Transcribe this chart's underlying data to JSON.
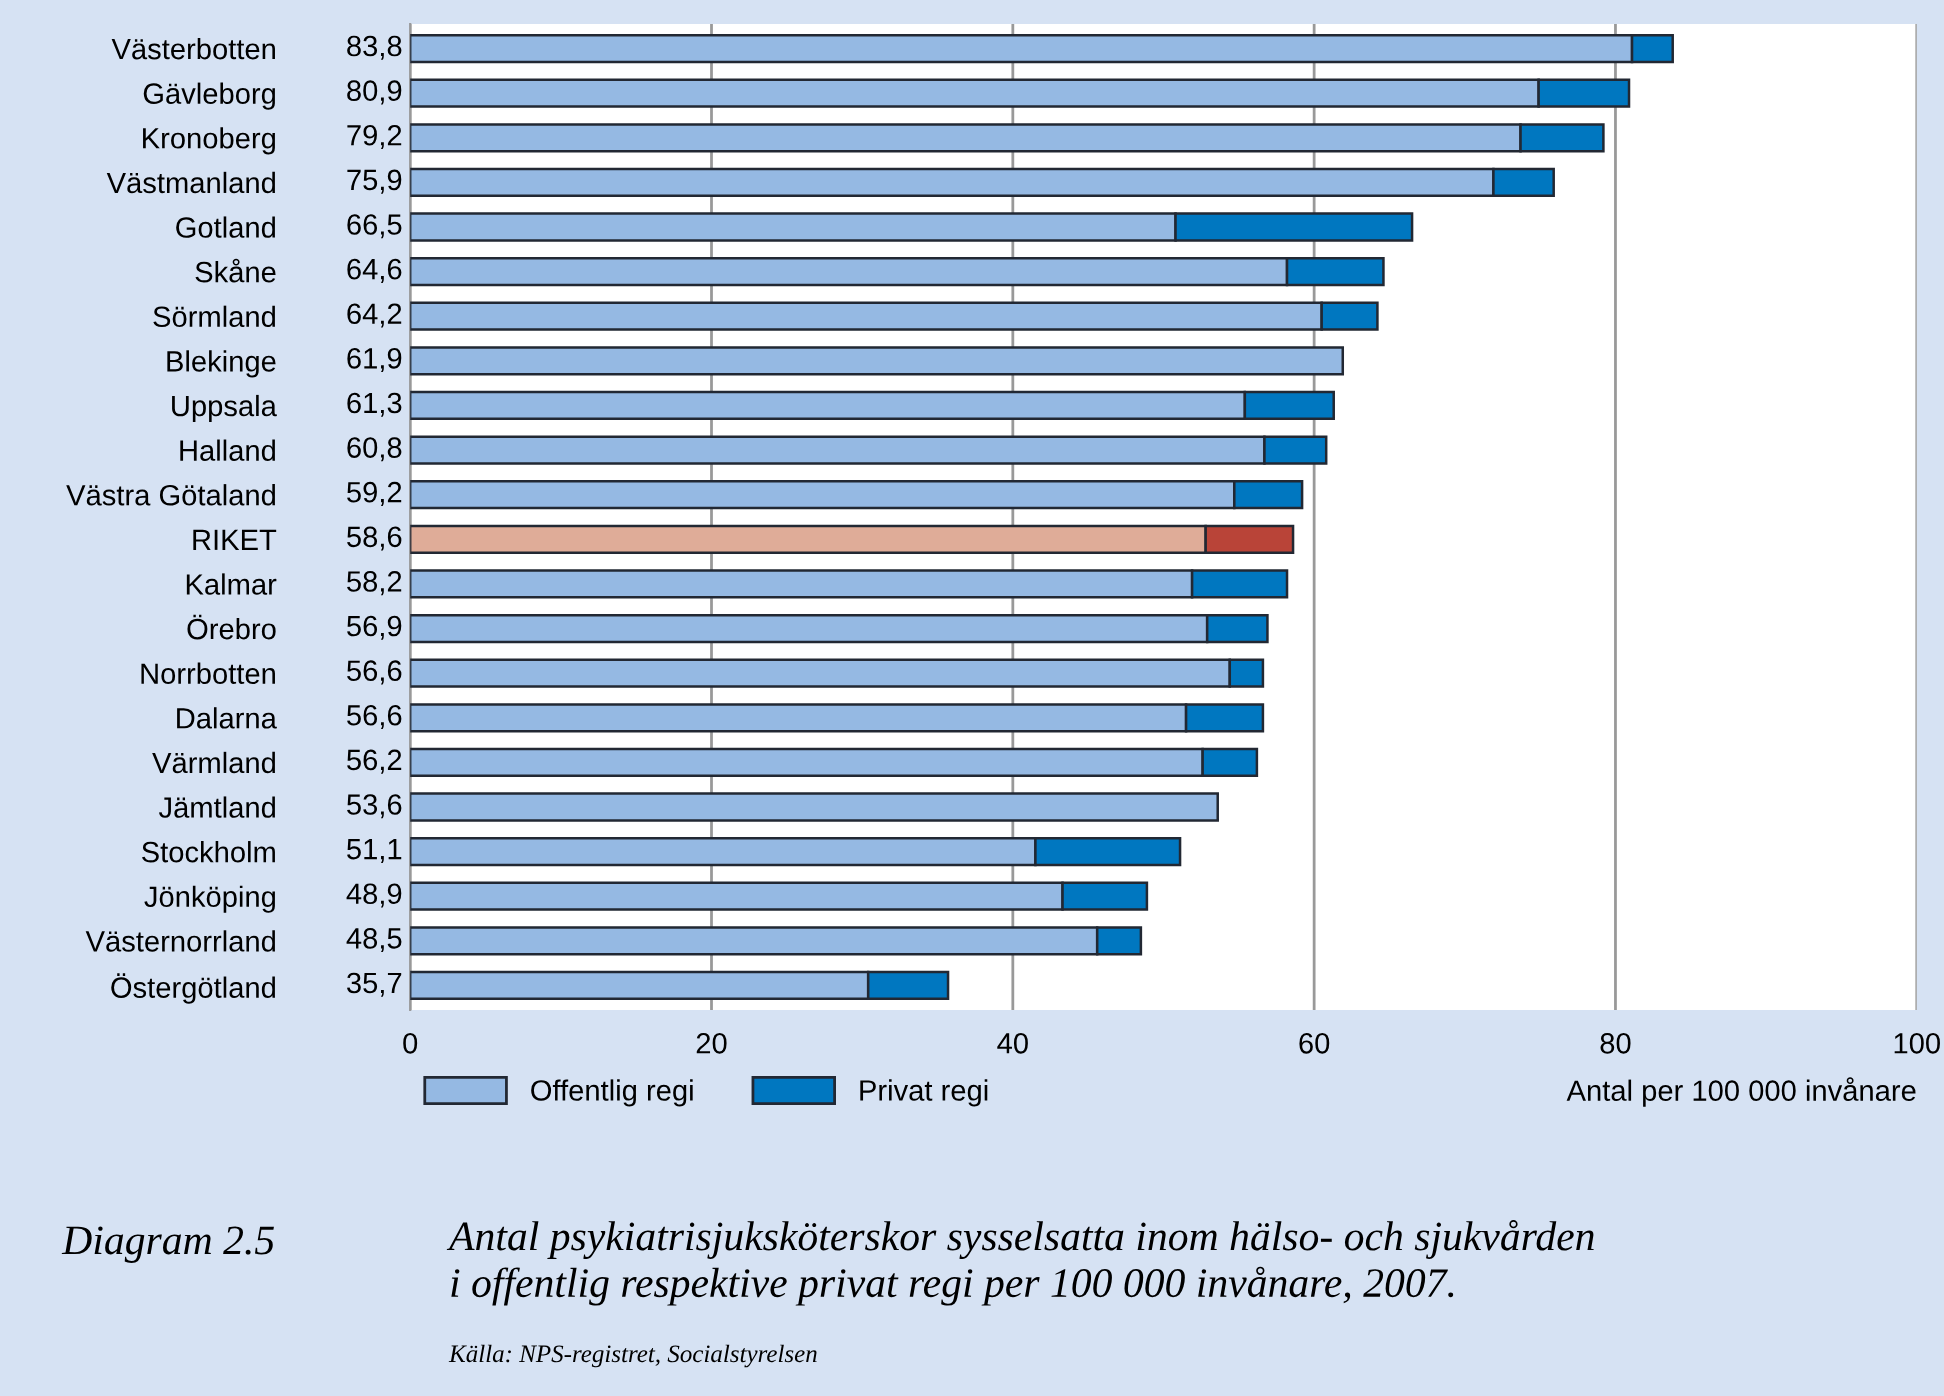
{
  "chart_data": {
    "type": "bar",
    "orientation": "horizontal",
    "stacked": true,
    "categories": [
      "Västerbotten",
      "Gävleborg",
      "Kronoberg",
      "Västmanland",
      "Gotland",
      "Skåne",
      "Sörmland",
      "Blekinge",
      "Uppsala",
      "Halland",
      "Västra Götaland",
      "RIKET",
      "Kalmar",
      "Örebro",
      "Norrbotten",
      "Dalarna",
      "Värmland",
      "Jämtland",
      "Stockholm",
      "Jönköping",
      "Västernorrland",
      "Östergötland"
    ],
    "series": [
      {
        "name": "Offentlig regi",
        "color": "#95b9e3",
        "colors": [
          "#95b9e3",
          "#95b9e3",
          "#95b9e3",
          "#95b9e3",
          "#95b9e3",
          "#95b9e3",
          "#95b9e3",
          "#95b9e3",
          "#95b9e3",
          "#95b9e3",
          "#95b9e3",
          "#dfac98",
          "#95b9e3",
          "#95b9e3",
          "#95b9e3",
          "#95b9e3",
          "#95b9e3",
          "#95b9e3",
          "#95b9e3",
          "#95b9e3",
          "#95b9e3",
          "#95b9e3"
        ],
        "values": [
          81.1,
          74.9,
          73.7,
          71.9,
          50.8,
          58.2,
          60.5,
          61.9,
          55.4,
          56.7,
          54.7,
          52.8,
          51.9,
          52.9,
          54.4,
          51.5,
          52.6,
          53.6,
          41.5,
          43.3,
          45.6,
          30.4
        ]
      },
      {
        "name": "Privat regi",
        "color": "#0077c0",
        "colors": [
          "#0077c0",
          "#0077c0",
          "#0077c0",
          "#0077c0",
          "#0077c0",
          "#0077c0",
          "#0077c0",
          "#0077c0",
          "#0077c0",
          "#0077c0",
          "#0077c0",
          "#b94438",
          "#0077c0",
          "#0077c0",
          "#0077c0",
          "#0077c0",
          "#0077c0",
          "#0077c0",
          "#0077c0",
          "#0077c0",
          "#0077c0",
          "#0077c0"
        ],
        "values": [
          2.7,
          6.0,
          5.5,
          4.0,
          15.7,
          6.4,
          3.7,
          null,
          5.9,
          4.1,
          4.5,
          5.8,
          6.3,
          4.0,
          2.2,
          5.1,
          3.6,
          null,
          9.6,
          5.6,
          2.9,
          5.3
        ]
      }
    ],
    "totals": [
      "83,8",
      "80,9",
      "79,2",
      "75,9",
      "66,5",
      "64,6",
      "64,2",
      "61,9",
      "61,3",
      "60,8",
      "59,2",
      "58,6",
      "58,2",
      "56,9",
      "56,6",
      "56,6",
      "56,2",
      "53,6",
      "51,1",
      "48,9",
      "48,5",
      "35,7"
    ],
    "xlim": [
      0,
      100
    ],
    "xticks": [
      0,
      20,
      40,
      60,
      80,
      100
    ],
    "xlabel": "Antal per 100 000 invånare",
    "grid": "x",
    "legend": "bottom",
    "annotations": [
      "Diagram 2.5",
      "Antal psykiatrisjuksköterskor sysselsatta inom hälso- och sjukvården \ni offentlig respektive privat regi per 100 000 invånare, 2007.",
      "Källa: NPS-registret, Socialstyrelsen"
    ]
  }
}
